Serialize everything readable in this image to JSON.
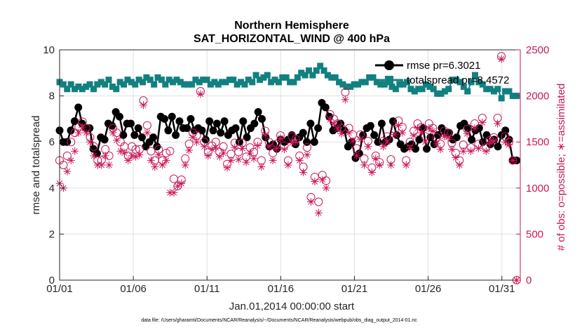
{
  "chart_data": {
    "type": "line",
    "title": "Northern Hemisphere",
    "subtitle": "SAT_HORIZONTAL_WIND @ 400 hPa",
    "xlabel": "Jan.01,2014 00:00:00 start",
    "ylabel": "rmse and totalspread",
    "ylabel_right": "# of obs: o=possible; ∗=assimilated",
    "footnote": "data file: /Users/gharamti/Documents/NCAR/Reanalysis/~/Documents/NCAR/Reanalysis/webpub/obs_diag_output_2014-01.nc",
    "xlim": [
      0,
      31.25
    ],
    "ylim": [
      0,
      10
    ],
    "ylim_right": [
      0,
      2500
    ],
    "x_ticks": [
      {
        "v": 0,
        "label": "01/01"
      },
      {
        "v": 5,
        "label": "01/06"
      },
      {
        "v": 10,
        "label": "01/11"
      },
      {
        "v": 15,
        "label": "01/16"
      },
      {
        "v": 20,
        "label": "01/21"
      },
      {
        "v": 25,
        "label": "01/26"
      },
      {
        "v": 30,
        "label": "01/31"
      }
    ],
    "y_ticks": [
      0,
      2,
      4,
      6,
      8,
      10
    ],
    "y_ticks_right": [
      0,
      500,
      1000,
      1500,
      2000,
      2500
    ],
    "legend_position": "top-right",
    "colors": {
      "rmse": "#000000",
      "totalspread": "#138080",
      "obs": "#c8185a"
    },
    "series": [
      {
        "name": "rmse pr=6.3021",
        "values": [
          6.5,
          6.0,
          6.0,
          6.5,
          6.9,
          7.5,
          6.8,
          6.6,
          6.6,
          5.7,
          5.5,
          6.2,
          6.1,
          6.8,
          6.7,
          7.3,
          7.1,
          6.3,
          6.8,
          6.8,
          6.3,
          6.6,
          6.2,
          5.8,
          6.0,
          6.2,
          5.8,
          7.1,
          7.0,
          6.5,
          7.1,
          6.3,
          6.9,
          6.6,
          6.6,
          7.0,
          6.5,
          6.6,
          6.5,
          6.1,
          6.9,
          6.5,
          6.8,
          6.4,
          6.9,
          6.3,
          6.5,
          6.6,
          6.0,
          6.9,
          6.2,
          6.6,
          6.8,
          7.3,
          7.0,
          6.2,
          5.8,
          5.9,
          5.7,
          6.1,
          6.0,
          6.1,
          6.3,
          5.9,
          6.2,
          6.4,
          6.0,
          6.8,
          6.0,
          6.6,
          7.7,
          7.5,
          7.1,
          6.5,
          6.6,
          6.8,
          6.5,
          5.8,
          6.0,
          5.3,
          5.5,
          6.3,
          6.6,
          6.7,
          6.3,
          6.0,
          6.8,
          6.0,
          6.1,
          6.9,
          6.3,
          5.9,
          5.7,
          5.8,
          5.9,
          5.7,
          6.1,
          6.6,
          5.7,
          6.2,
          5.9,
          6.3,
          6.6,
          6.4,
          6.4,
          6.1,
          6.2,
          6.7,
          6.8,
          6.6,
          6.1,
          6.5,
          6.6,
          6.0,
          6.3,
          5.9,
          6.1,
          5.8,
          6.3,
          6.5,
          6.1,
          5.2,
          5.2
        ]
      },
      {
        "name": "totalspread pr=8.4572",
        "values": [
          8.6,
          8.5,
          8.3,
          8.5,
          8.3,
          8.4,
          8.3,
          8.4,
          8.5,
          8.3,
          8.5,
          8.6,
          8.5,
          8.7,
          8.4,
          8.3,
          8.6,
          8.5,
          8.7,
          8.6,
          8.5,
          8.7,
          8.6,
          8.8,
          8.7,
          8.5,
          8.8,
          8.7,
          8.5,
          8.7,
          8.6,
          8.7,
          8.6,
          8.5,
          8.5,
          8.5,
          8.7,
          8.6,
          8.7,
          8.7,
          8.5,
          8.6,
          8.5,
          8.6,
          8.6,
          8.7,
          8.7,
          8.5,
          8.6,
          8.5,
          8.7,
          8.6,
          8.9,
          8.7,
          8.8,
          8.9,
          8.6,
          8.7,
          8.6,
          8.8,
          8.8,
          8.6,
          8.6,
          8.8,
          9.0,
          8.9,
          9.1,
          8.9,
          9.1,
          9.3,
          9.1,
          8.9,
          8.8,
          8.8,
          8.6,
          8.5,
          8.4,
          8.4,
          8.5,
          8.5,
          8.6,
          8.6,
          8.8,
          8.8,
          8.6,
          8.5,
          8.5,
          8.6,
          8.4,
          8.3,
          8.5,
          8.5,
          8.6,
          8.3,
          8.2,
          8.3,
          8.3,
          8.5,
          8.4,
          8.3,
          8.1,
          8.1,
          8.2,
          8.3,
          8.7,
          8.7,
          8.6,
          8.4,
          8.2,
          8.6,
          8.9,
          8.6,
          8.5,
          8.3,
          8.3,
          8.2,
          8.3,
          7.9,
          8.2,
          8.2,
          8.0,
          8.0
        ]
      },
      {
        "name": "# possible",
        "values": [
          1300,
          1250,
          1350,
          1500,
          1600,
          1660,
          1720,
          1650,
          1550,
          1450,
          1300,
          1300,
          1420,
          1350,
          1650,
          1600,
          1500,
          1450,
          1350,
          1450,
          1420,
          1420,
          1950,
          1680,
          1400,
          1300,
          1420,
          1300,
          1380,
          1400,
          1100,
          1020,
          1090,
          1320,
          1480,
          1600,
          1570,
          2050,
          1500,
          1390,
          1460,
          1500,
          1390,
          1450,
          1260,
          1370,
          1490,
          1390,
          1490,
          1340,
          1440,
          1390,
          1500,
          1300,
          1620,
          1500,
          1380,
          1480,
          1570,
          1460,
          1300,
          1560,
          1530,
          1350,
          1230,
          1440,
          900,
          1120,
          850,
          1140,
          1080,
          1800,
          1750,
          1700,
          1650,
          2040,
          1650,
          1580,
          1430,
          1580,
          1320,
          1510,
          1220,
          1350,
          1280,
          1510,
          1560,
          1310,
          1640,
          1730,
          1660,
          1300,
          1500,
          1620,
          1700,
          1660,
          1560,
          1700,
          1650,
          1550,
          1480,
          1620,
          1600,
          1490,
          1380,
          1300,
          1470,
          1640,
          1440,
          1700,
          1480,
          1760,
          1440,
          1520,
          1550,
          1760,
          2430,
          1560,
          1500,
          1300,
          0
        ]
      },
      {
        "name": "# assimilated",
        "values": [
          1050,
          1000,
          1180,
          1300,
          1400,
          1600,
          1660,
          1600,
          1500,
          1350,
          1250,
          1250,
          1350,
          1250,
          1600,
          1520,
          1400,
          1380,
          1300,
          1350,
          1340,
          1360,
          1900,
          1600,
          1300,
          1230,
          1360,
          1250,
          1300,
          950,
          950,
          1020,
          1050,
          1250,
          1410,
          1550,
          1500,
          2020,
          1450,
          1350,
          1420,
          1440,
          1340,
          1380,
          1220,
          1300,
          1440,
          1310,
          1430,
          1280,
          1380,
          1320,
          1460,
          1230,
          1580,
          1450,
          1300,
          1430,
          1540,
          1420,
          1250,
          1490,
          1500,
          1300,
          1170,
          1360,
          850,
          1070,
          730,
          1090,
          1000,
          1740,
          1700,
          1640,
          1590,
          1960,
          1600,
          1510,
          1350,
          1530,
          1250,
          1450,
          1170,
          1320,
          1250,
          1450,
          1500,
          1250,
          1580,
          1680,
          1600,
          1250,
          1430,
          1570,
          1650,
          1600,
          1500,
          1650,
          1620,
          1480,
          1420,
          1560,
          1550,
          1420,
          1330,
          1250,
          1400,
          1590,
          1400,
          1650,
          1430,
          1710,
          1400,
          1500,
          1510,
          1700,
          2400,
          1500,
          1470,
          1300,
          0
        ]
      }
    ]
  }
}
